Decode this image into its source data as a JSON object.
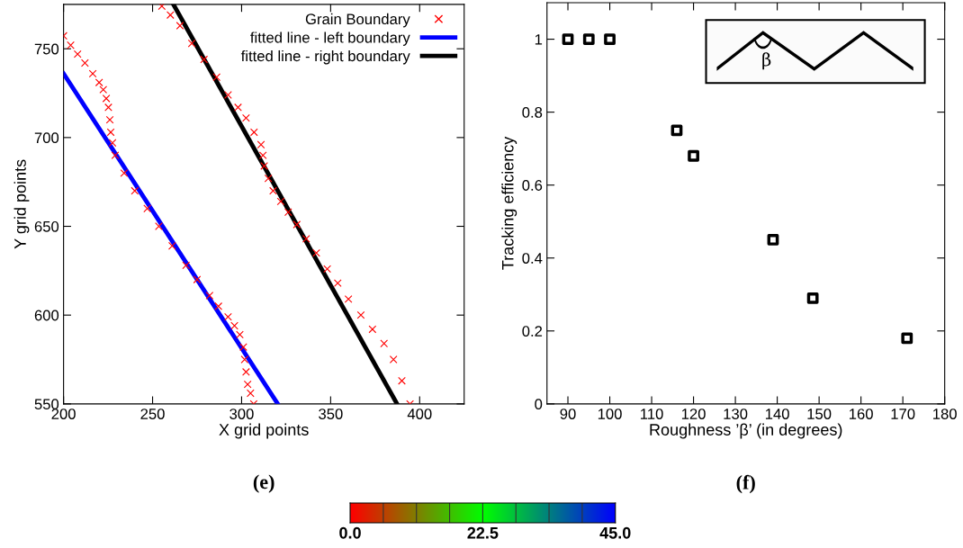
{
  "chart_data": [
    {
      "type": "scatter",
      "xlabel": "X grid points",
      "ylabel": "Y grid points",
      "xlim": [
        200,
        425
      ],
      "ylim": [
        550,
        775
      ],
      "xticks": [
        200,
        250,
        300,
        350,
        400
      ],
      "yticks": [
        550,
        600,
        650,
        700,
        750
      ],
      "legend": "top right",
      "annotations": [
        "(e)"
      ],
      "series": [
        {
          "name": "Grain Boundary",
          "type": "scatter",
          "color": "#ff0000",
          "marker": "cross",
          "x": [
            200,
            204,
            207.9,
            212,
            216.4,
            220,
            222.3,
            224,
            225.2,
            226,
            226.5,
            227.5,
            229,
            234,
            240,
            247,
            253.5,
            261,
            268.8,
            275,
            282,
            287,
            292.4,
            296,
            299,
            301,
            301.7,
            302.5,
            303.4,
            305,
            306.8,
            255.2,
            260,
            265.4,
            272,
            278.9,
            286,
            292.4,
            298,
            302.5,
            307,
            310.9,
            312,
            312.7,
            315,
            317.7,
            322,
            326.2,
            331,
            336.3,
            342,
            348.1,
            354,
            360,
            367,
            373.5,
            380,
            385.3,
            390,
            394.6
          ],
          "values": [
            757.3,
            752,
            747,
            742,
            736,
            731,
            727,
            722,
            717,
            710,
            703,
            697,
            690,
            680,
            670,
            660,
            650,
            639,
            628,
            620,
            611,
            605,
            599,
            594,
            589,
            582,
            575,
            568,
            561,
            556,
            550,
            774,
            769,
            763,
            753,
            744,
            734,
            724,
            717,
            711,
            703,
            696,
            690,
            684,
            677,
            670,
            664,
            658,
            651,
            643,
            635,
            626,
            618,
            609,
            600,
            592,
            584,
            575,
            563,
            550
          ]
        },
        {
          "name": "fitted line - left boundary",
          "type": "line",
          "color": "#0000ff",
          "x": [
            200,
            320.3
          ],
          "values": [
            736,
            550
          ]
        },
        {
          "name": "fitted line - right boundary",
          "type": "line",
          "color": "#000000",
          "x": [
            261.7,
            387.3
          ],
          "values": [
            775,
            550
          ]
        }
      ]
    },
    {
      "type": "scatter",
      "xlabel": "Roughness ’β’ (in degrees)",
      "ylabel": "Tracking efficiency",
      "xlim": [
        85,
        180
      ],
      "ylim": [
        0,
        1.1
      ],
      "xticks": [
        90,
        100,
        110,
        120,
        130,
        140,
        150,
        160,
        170,
        180
      ],
      "yticks": [
        0,
        0.2,
        0.4,
        0.6,
        0.8,
        1
      ],
      "annotations": [
        "(f)",
        "β"
      ],
      "series": [
        {
          "type": "scatter",
          "color": "#000000",
          "marker": "square",
          "x": [
            90,
            95,
            100,
            116,
            120,
            139,
            148.5,
            171
          ],
          "values": [
            1,
            1,
            1,
            0.75,
            0.68,
            0.45,
            0.29,
            0.18
          ]
        }
      ]
    },
    {
      "type": "other",
      "colors": [
        "#ff0000",
        "#00ff00",
        "#0000ff"
      ],
      "annotations": [
        "0.0",
        "22.5",
        "45.0"
      ]
    }
  ]
}
